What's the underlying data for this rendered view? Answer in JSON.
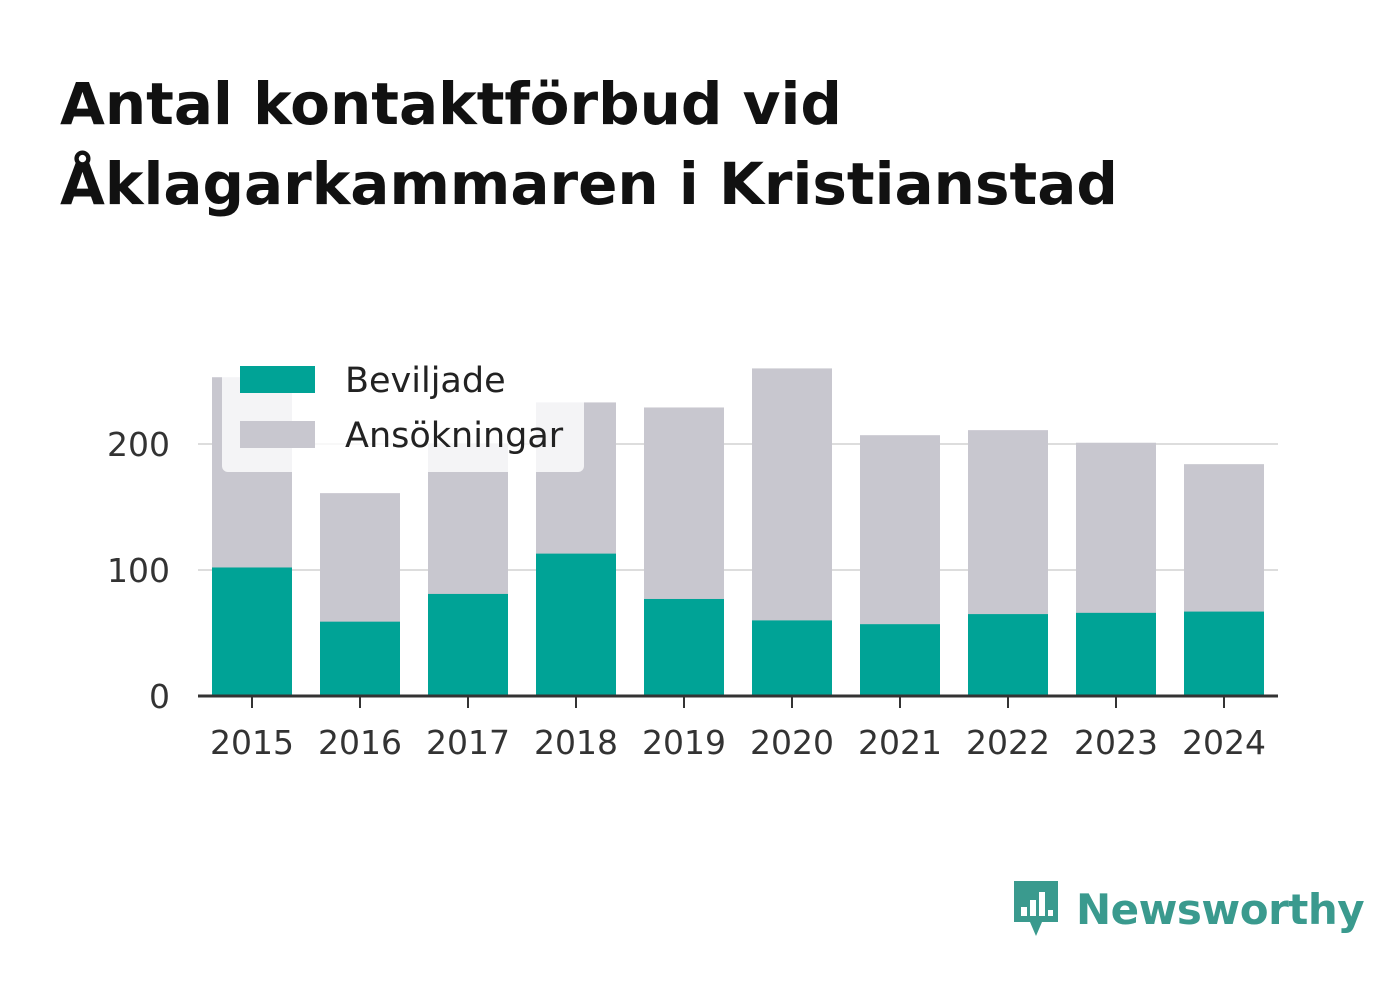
{
  "title": {
    "line1": "Antal kontaktförbud vid",
    "line2": "Åklagarkammaren i Kristianstad"
  },
  "colors": {
    "beviljade": "#00a396",
    "ansokningar": "#c8c7cf",
    "brand": "#3a9a8e"
  },
  "chart_data": {
    "type": "bar",
    "stacked": "overlay",
    "categories": [
      "2015",
      "2016",
      "2017",
      "2018",
      "2019",
      "2020",
      "2021",
      "2022",
      "2023",
      "2024"
    ],
    "series": [
      {
        "name": "Beviljade",
        "values": [
          102,
          59,
          81,
          113,
          77,
          60,
          57,
          65,
          66,
          67
        ]
      },
      {
        "name": "Ansökningar",
        "values": [
          253,
          161,
          200,
          233,
          229,
          260,
          207,
          211,
          201,
          184
        ]
      }
    ],
    "yticks": [
      0,
      100,
      200
    ],
    "ylim": [
      0,
      280
    ],
    "grid": true,
    "legend": "top-left"
  },
  "brand": {
    "name": "Newsworthy",
    "icon": "bar-chart-speech-icon"
  }
}
